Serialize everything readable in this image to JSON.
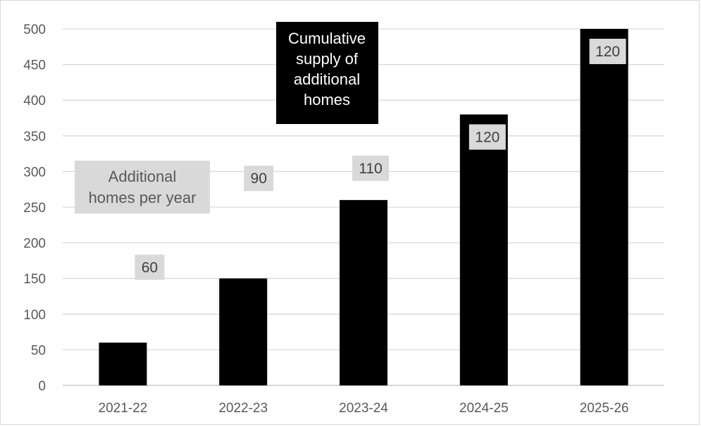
{
  "chart_data": {
    "type": "bar",
    "categories": [
      "2021-22",
      "2022-23",
      "2023-24",
      "2024-25",
      "2025-26"
    ],
    "series": [
      {
        "name": "Cumulative supply of additional homes",
        "values": [
          60,
          150,
          260,
          380,
          500
        ],
        "color": "#000000"
      },
      {
        "name": "Additional homes per year",
        "values": [
          60,
          90,
          110,
          120,
          120
        ],
        "color": "#d9d9d9"
      }
    ],
    "ylim": [
      0,
      500
    ],
    "yticks": [
      0,
      50,
      100,
      150,
      200,
      250,
      300,
      350,
      400,
      450,
      500
    ],
    "grid": true,
    "legend": {
      "dark_lines": [
        "Cumulative",
        "supply of",
        "additional",
        "homes"
      ],
      "light_lines": [
        "Additional",
        "homes per year"
      ]
    },
    "colors": {
      "bar": "#000000",
      "label_box": "#d9d9d9",
      "gridline": "#d9d9d9",
      "axis_text": "#595959"
    }
  }
}
